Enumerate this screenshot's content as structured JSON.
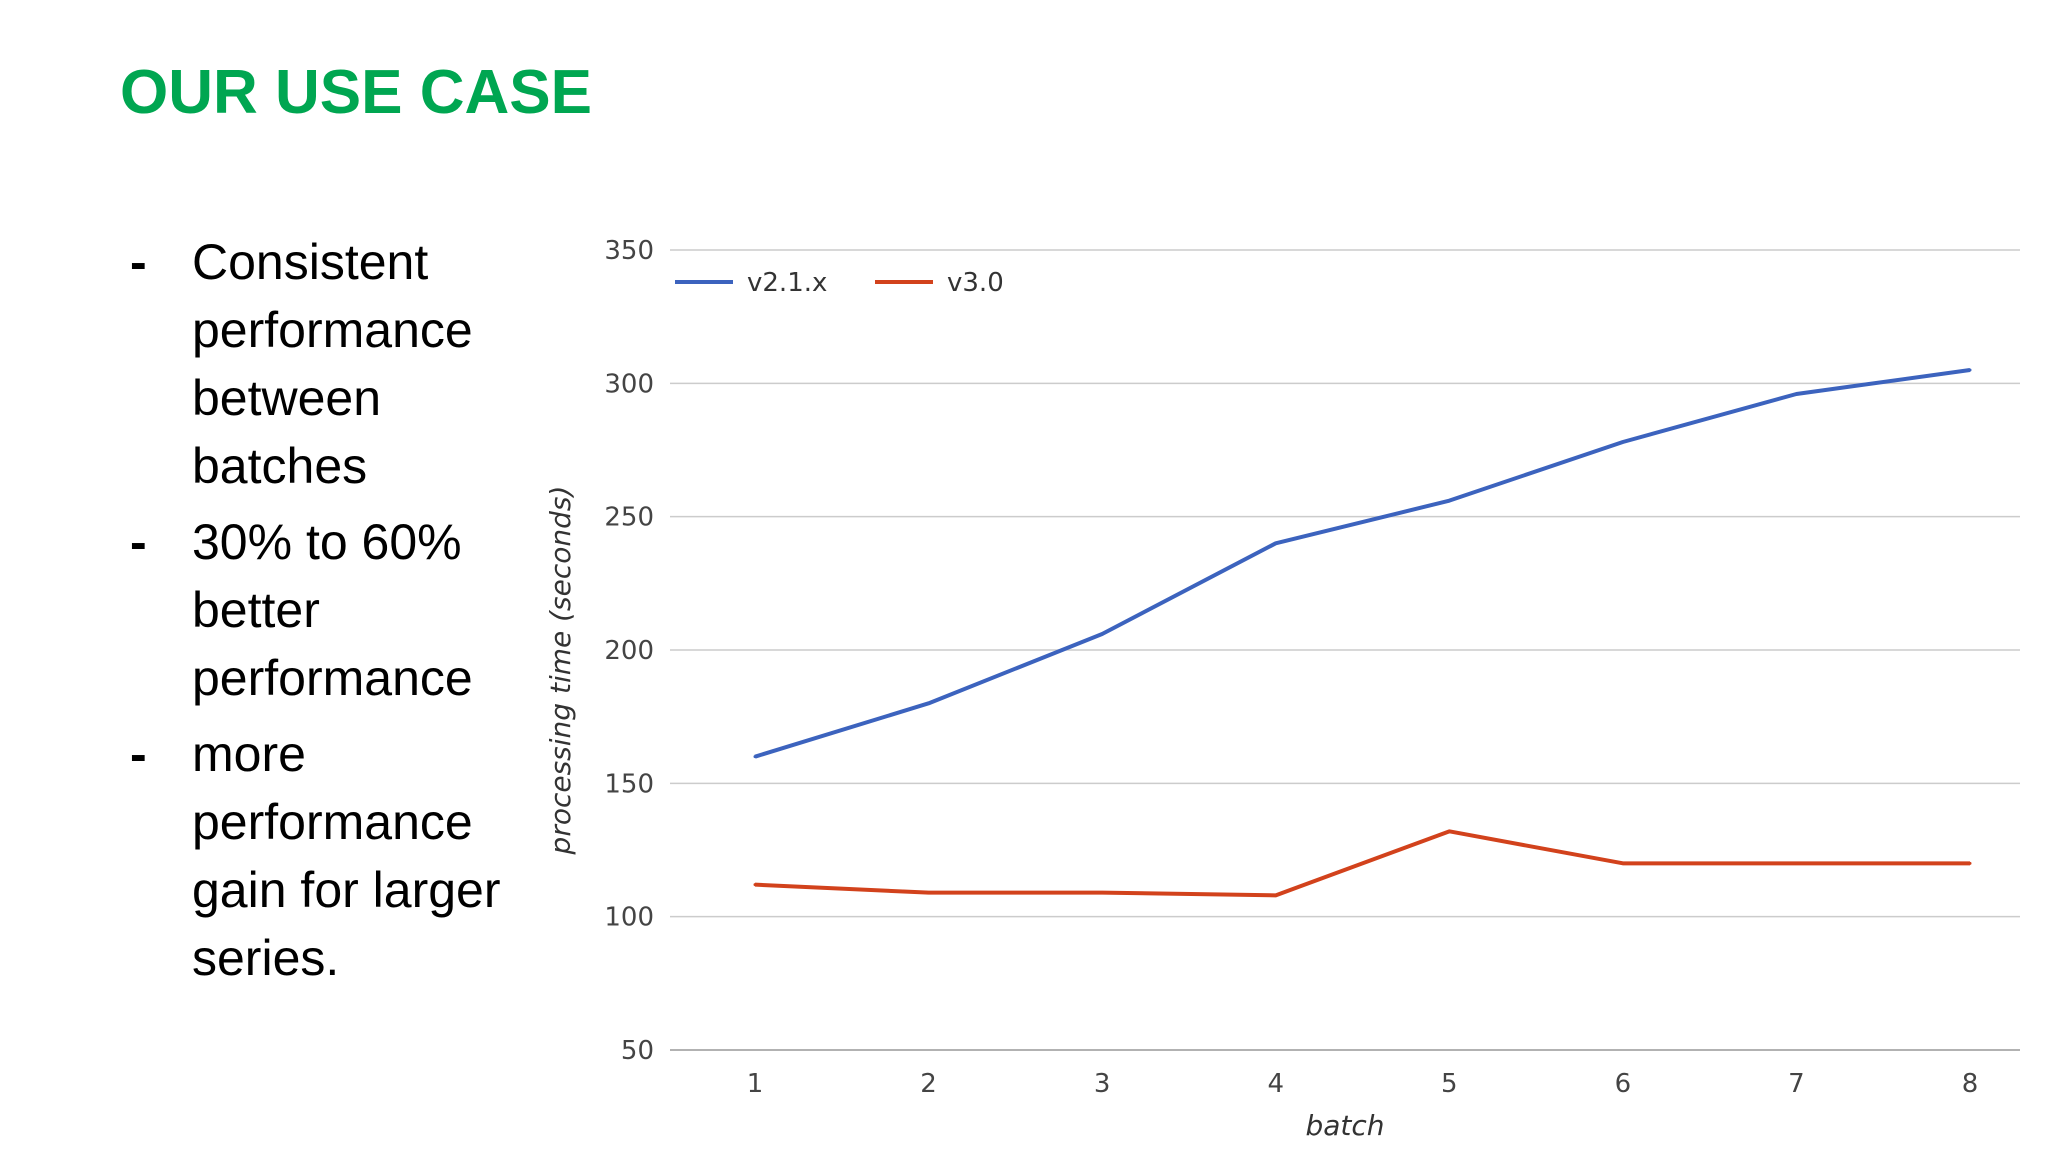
{
  "slide": {
    "title": "OUR USE CASE",
    "bullets": [
      {
        "dash": "-",
        "text": "Consistent performance between batches"
      },
      {
        "dash": "-",
        "text": "30% to 60% better performance"
      },
      {
        "dash": "-",
        "text": "more performance gain for larger series."
      }
    ]
  },
  "chart_data": {
    "type": "line",
    "title": "",
    "xlabel": "batch",
    "ylabel": "processing time (seconds)",
    "x": [
      1,
      2,
      3,
      4,
      5,
      6,
      7,
      8
    ],
    "ylim": [
      50,
      350
    ],
    "yticks": [
      50,
      100,
      150,
      200,
      250,
      300,
      350
    ],
    "grid": true,
    "legend": "top-left",
    "series": [
      {
        "name": "v2.1.x",
        "color": "#3c63be",
        "values": [
          160,
          180,
          206,
          240,
          256,
          278,
          296,
          305
        ]
      },
      {
        "name": "v3.0",
        "color": "#d2421c",
        "values": [
          112,
          109,
          109,
          108,
          132,
          120,
          120,
          120
        ]
      }
    ]
  }
}
